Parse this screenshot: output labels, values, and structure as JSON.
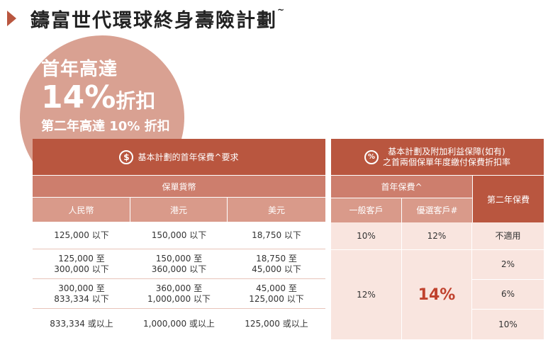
{
  "title": {
    "text": "鑄富世代環球終身壽險計劃",
    "mark": "~"
  },
  "promo": {
    "line1": "首年高達",
    "line2_value": "14%",
    "line2_suffix": "折扣",
    "line3": "第二年高達 10% 折扣"
  },
  "left_table": {
    "header_icon": "dollar-icon",
    "header_icon_glyph": "$",
    "header": "基本計劃的首年保費^要求",
    "subheader": "保單貨幣",
    "columns": [
      "人民幣",
      "港元",
      "美元"
    ],
    "rows": [
      [
        "125,000 以下",
        "150,000 以下",
        "18,750 以下"
      ],
      [
        "125,000 至\n300,000 以下",
        "150,000 至\n360,000 以下",
        "18,750 至\n45,000 以下"
      ],
      [
        "300,000 至\n833,334 以下",
        "360,000 至\n1,000,000 以下",
        "45,000 至\n125,000 以下"
      ],
      [
        "833,334 或以上",
        "1,000,000 或以上",
        "125,000 或以上"
      ]
    ]
  },
  "right_table": {
    "header_icon": "percent-icon",
    "header_icon_glyph": "%",
    "header_line1": "基本計劃及附加利益保障(如有)",
    "header_line2": "之首兩個保單年度繳付保費折扣率",
    "first_year_label": "首年保費^",
    "second_year_label": "第二年保費",
    "col_general": "一般客戶",
    "col_premium": "優選客戶#",
    "row1": {
      "general": "10%",
      "premium": "12%",
      "second": "不適用"
    },
    "merged": {
      "general": "12%",
      "premium": "14%"
    },
    "second_year_values": [
      "2%",
      "6%",
      "10%"
    ]
  },
  "colors": {
    "dark": "#b9563f",
    "mid": "#cd7e6d",
    "light": "#d99a8a",
    "circle": "#d9a192",
    "pink_body": "#f9e5df",
    "highlight": "#c0422e"
  }
}
